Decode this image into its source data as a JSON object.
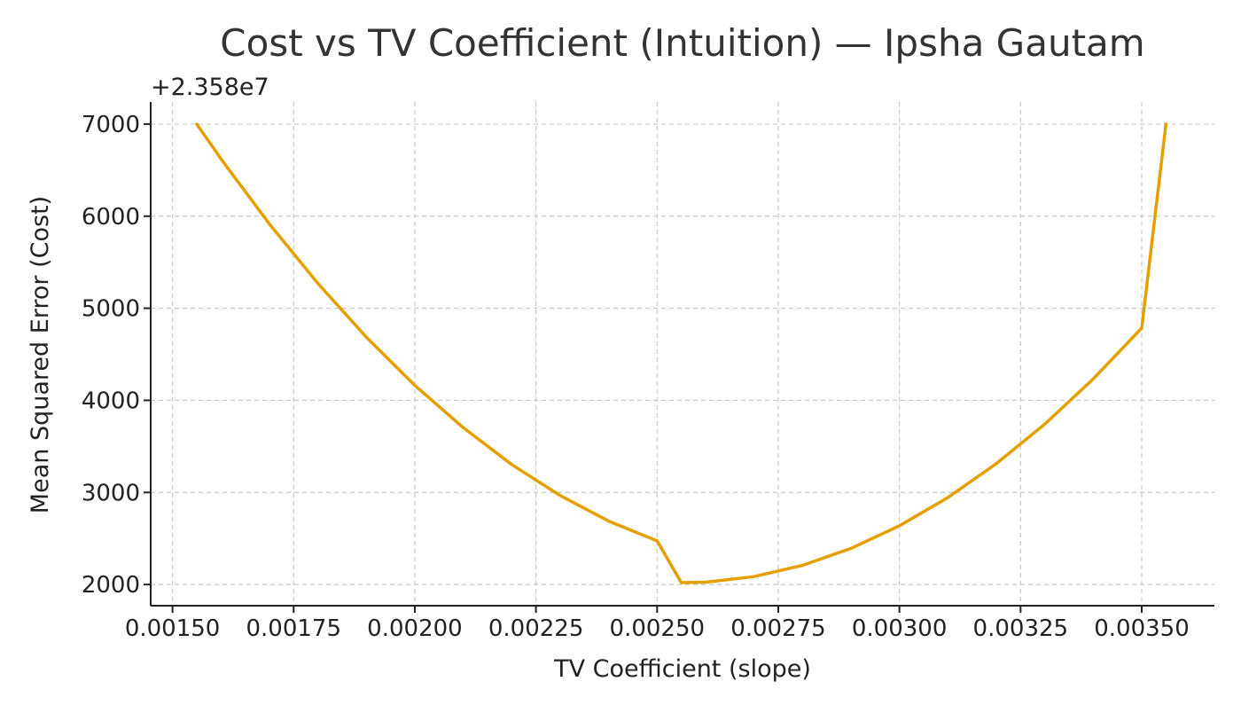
{
  "chart_data": {
    "type": "line",
    "title": "Cost vs TV Coefficient (Intuition) — Ipsha Gautam",
    "xlabel": "TV Coefficient (slope)",
    "ylabel": "Mean Squared Error (Cost)",
    "y_offset_label": "+2.358e7",
    "xlim": [
      0.001455,
      0.00365
    ],
    "ylim": [
      1770,
      7240
    ],
    "grid": true,
    "line_color": "#E69F00",
    "x_ticks": [
      {
        "value": 0.0015,
        "label": "0.00150"
      },
      {
        "value": 0.00175,
        "label": "0.00175"
      },
      {
        "value": 0.002,
        "label": "0.00200"
      },
      {
        "value": 0.00225,
        "label": "0.00225"
      },
      {
        "value": 0.0025,
        "label": "0.00250"
      },
      {
        "value": 0.00275,
        "label": "0.00275"
      },
      {
        "value": 0.003,
        "label": "0.00300"
      },
      {
        "value": 0.00325,
        "label": "0.00325"
      },
      {
        "value": 0.0035,
        "label": "0.00350"
      }
    ],
    "y_ticks": [
      {
        "value": 2000,
        "label": "2000"
      },
      {
        "value": 3000,
        "label": "3000"
      },
      {
        "value": 4000,
        "label": "4000"
      },
      {
        "value": 5000,
        "label": "5000"
      },
      {
        "value": 6000,
        "label": "6000"
      },
      {
        "value": 7000,
        "label": "7000"
      }
    ],
    "series": [
      {
        "x": [
          0.00155,
          0.0016,
          0.0017,
          0.0018,
          0.0019,
          0.002,
          0.0021,
          0.0022,
          0.0023,
          0.0024,
          0.0025,
          0.00255,
          0.0026,
          0.0027,
          0.0028,
          0.0029,
          0.003,
          0.0031,
          0.0032,
          0.0033,
          0.0034,
          0.0035,
          0.00355
        ],
        "y": [
          7000,
          6622,
          5915,
          5270,
          4686,
          4163,
          3703,
          3303,
          2966,
          2689,
          2474,
          2020,
          2025,
          2086,
          2208,
          2392,
          2638,
          2944,
          3313,
          3742,
          4233,
          4785,
          7000
        ]
      }
    ]
  }
}
